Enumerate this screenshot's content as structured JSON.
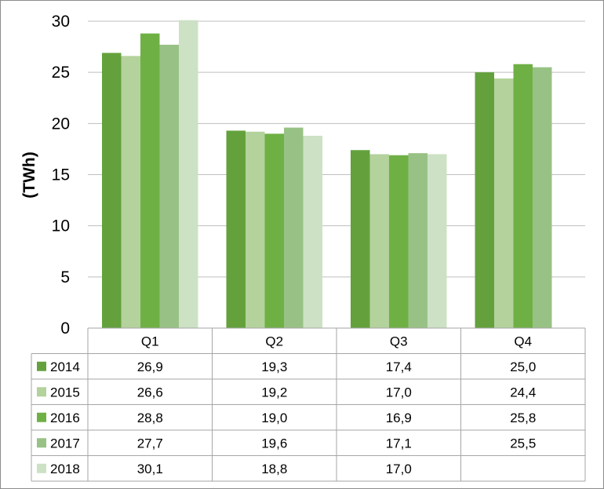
{
  "chart_data": {
    "type": "bar",
    "ylabel": "(TWh)",
    "ylim": [
      0,
      30
    ],
    "yticks": [
      "0",
      "5",
      "10",
      "15",
      "20",
      "25",
      "30"
    ],
    "grid": true,
    "legend": "data-table",
    "categories": [
      "Q1",
      "Q2",
      "Q3",
      "Q4"
    ],
    "series": [
      {
        "name": "2014",
        "color": "#64a13d",
        "values": [
          26.9,
          19.3,
          17.4,
          25.0
        ],
        "labels": [
          "26,9",
          "19,3",
          "17,4",
          "25,0"
        ]
      },
      {
        "name": "2015",
        "color": "#b4d29c",
        "values": [
          26.6,
          19.2,
          17.0,
          24.4
        ],
        "labels": [
          "26,6",
          "19,2",
          "17,0",
          "24,4"
        ]
      },
      {
        "name": "2016",
        "color": "#6fb045",
        "values": [
          28.8,
          19.0,
          16.9,
          25.8
        ],
        "labels": [
          "28,8",
          "19,0",
          "16,9",
          "25,8"
        ]
      },
      {
        "name": "2017",
        "color": "#98c285",
        "values": [
          27.7,
          19.6,
          17.1,
          25.5
        ],
        "labels": [
          "27,7",
          "19,6",
          "17,1",
          "25,5"
        ]
      },
      {
        "name": "2018",
        "color": "#cde1c5",
        "values": [
          30.1,
          18.8,
          17.0,
          null
        ],
        "labels": [
          "30,1",
          "18,8",
          "17,0",
          ""
        ]
      }
    ]
  }
}
